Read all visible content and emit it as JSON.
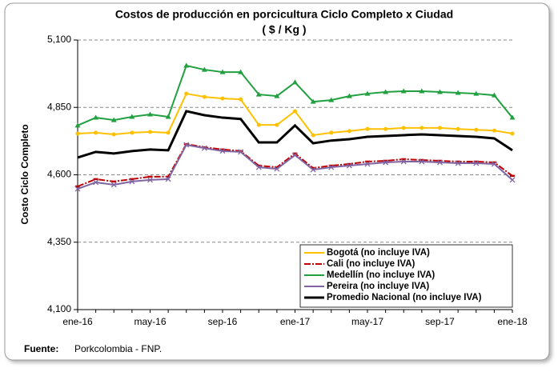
{
  "chart_data": {
    "type": "line",
    "title": "Costos de producción  en porcicultura Ciclo Completo x Ciudad",
    "subtitle": "( $ / Kg )",
    "y_label": "Costo Ciclo Completo",
    "source": {
      "label": "Fuente:",
      "text": "Porkcolombia - FNP."
    },
    "categories": [
      "ene-16",
      null,
      null,
      null,
      "may-16",
      null,
      null,
      null,
      "sep-16",
      null,
      null,
      null,
      "ene-17",
      null,
      null,
      null,
      "may-17",
      null,
      null,
      null,
      "sep-17",
      null,
      null,
      null,
      "ene-18"
    ],
    "ylim": [
      4100,
      5100
    ],
    "yticks": [
      {
        "value": 4100,
        "label": "4,100"
      },
      {
        "value": 4350,
        "label": "4,350"
      },
      {
        "value": 4600,
        "label": "4,600"
      },
      {
        "value": 4850,
        "label": "4,850"
      },
      {
        "value": 5100,
        "label": "5,100"
      }
    ],
    "grid": true,
    "legend": "lower right",
    "series": [
      {
        "name": "Bogotá (no incluye IVA)",
        "color": "#ffc000",
        "marker": "circle",
        "values": [
          4753,
          4756,
          4750,
          4756,
          4759,
          4756,
          4901,
          4889,
          4883,
          4880,
          4785,
          4785,
          4836,
          4747,
          4756,
          4762,
          4770,
          4770,
          4774,
          4774,
          4774,
          4770,
          4767,
          4764,
          4753
        ]
      },
      {
        "name": "Cali (no incluye IVA)",
        "color": "#c00000",
        "marker": "dash",
        "values": [
          4557,
          4584,
          4575,
          4584,
          4593,
          4593,
          4714,
          4702,
          4694,
          4688,
          4634,
          4628,
          4679,
          4625,
          4634,
          4640,
          4649,
          4652,
          4658,
          4655,
          4652,
          4649,
          4649,
          4646,
          4596
        ]
      },
      {
        "name": "Medellín (no incluye IVA)",
        "color": "#21a040",
        "marker": "triangle",
        "values": [
          4783,
          4812,
          4803,
          4815,
          4824,
          4815,
          5005,
          4990,
          4981,
          4981,
          4898,
          4892,
          4943,
          4871,
          4877,
          4892,
          4901,
          4907,
          4910,
          4910,
          4907,
          4904,
          4901,
          4895,
          4812
        ]
      },
      {
        "name": "Pereira (no incluye IVA)",
        "color": "#8064a2",
        "marker": "x",
        "values": [
          4548,
          4572,
          4563,
          4575,
          4581,
          4584,
          4711,
          4699,
          4688,
          4685,
          4628,
          4622,
          4673,
          4619,
          4628,
          4634,
          4640,
          4646,
          4649,
          4649,
          4646,
          4643,
          4643,
          4640,
          4581
        ]
      },
      {
        "name": "Promedio Nacional (no incluye IVA)",
        "color": "#000000",
        "marker": "none",
        "values": [
          4664,
          4685,
          4679,
          4688,
          4694,
          4691,
          4836,
          4821,
          4812,
          4807,
          4720,
          4720,
          4783,
          4717,
          4727,
          4732,
          4741,
          4744,
          4747,
          4750,
          4747,
          4744,
          4741,
          4735,
          4691
        ]
      }
    ]
  }
}
